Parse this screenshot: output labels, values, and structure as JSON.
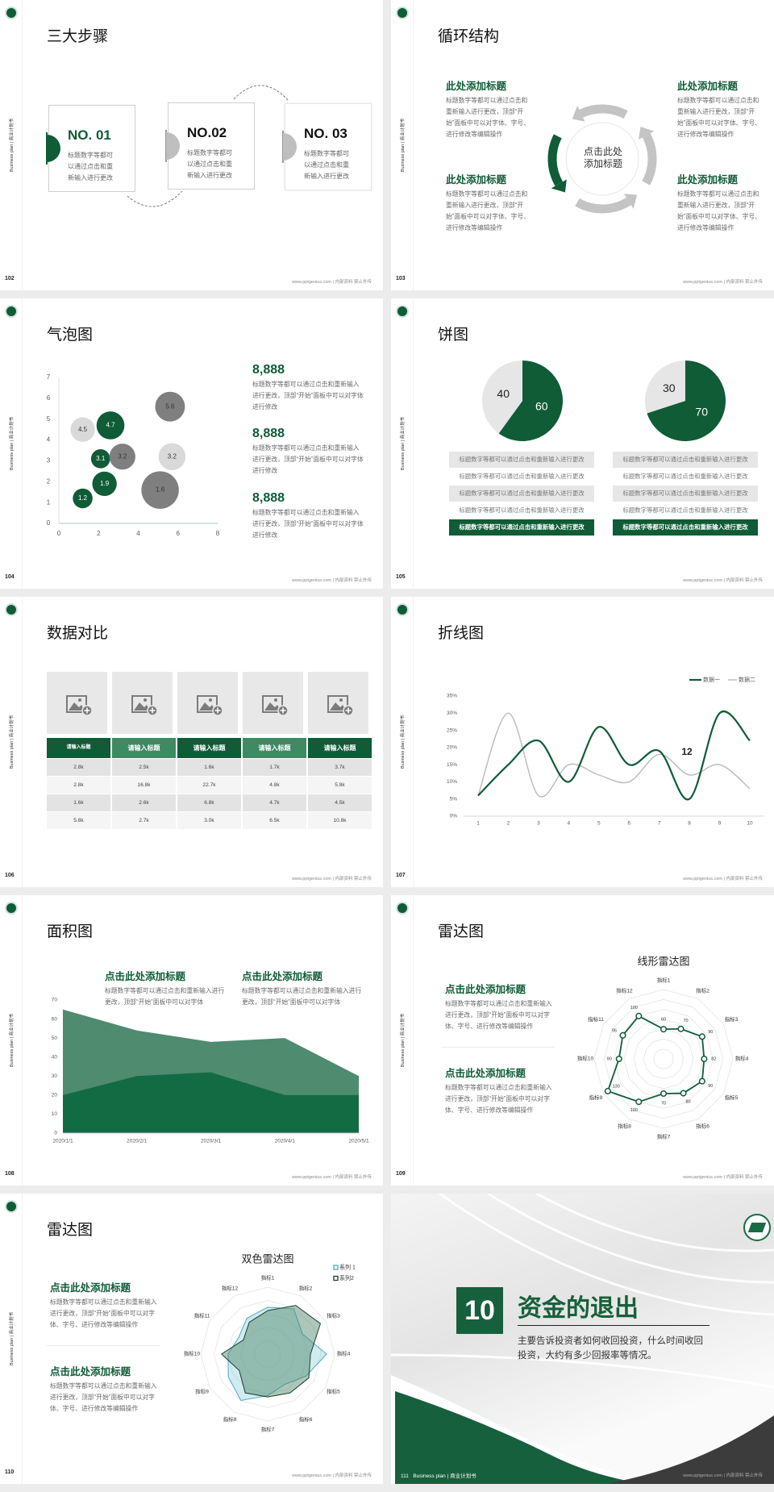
{
  "common": {
    "side_label": "Business plan | 商业计划书",
    "footer": "www.pptgenius.com | 内部资料 禁止外传"
  },
  "colors": {
    "green": "#0f5c36",
    "green_mid": "#4e8b6f",
    "green_dark_area": "#136b43",
    "gray_light": "#e6e6e6",
    "gray_dark": "#808080",
    "teal": "#4bacc6"
  },
  "slides": [
    {
      "page": "102",
      "title": "三大步骤",
      "steps": [
        {
          "no": "NO. 01",
          "text": "标题数字等都可以通过点击和重新输入进行更改"
        },
        {
          "no": "NO.02",
          "text": "标题数字等都可以通过点击和重新输入进行更改"
        },
        {
          "no": "NO. 03",
          "text": "标题数字等都可以通过点击和重新输入进行更改"
        }
      ]
    },
    {
      "page": "103",
      "title": "循环结构",
      "center": "点击此处添加标题",
      "blocks": [
        {
          "heading": "此处添加标题",
          "text": "标题数字等都可以通过点击和重新输入进行更改，顶部“开始”面板中可以对字体、字号、进行修改等编辑操作"
        },
        {
          "heading": "此处添加标题",
          "text": "标题数字等都可以通过点击和重新输入进行更改，顶部“开始”面板中可以对字体、字号、进行修改等编辑操作"
        },
        {
          "heading": "此处添加标题",
          "text": "标题数字等都可以通过点击和重新输入进行更改，顶部“开始”面板中可以对字体、字号、进行修改等编辑操作"
        },
        {
          "heading": "此处添加标题",
          "text": "标题数字等都可以通过点击和重新输入进行更改，顶部“开始”面板中可以对字体、字号、进行修改等编辑操作"
        }
      ]
    },
    {
      "page": "104",
      "title": "气泡图",
      "stats": [
        {
          "value": "8,888",
          "text": "标题数字等都可以通过点击和重新输入进行更改，顶部“开始”面板中可以对字体进行修改"
        },
        {
          "value": "8,888",
          "text": "标题数字等都可以通过点击和重新输入进行更改，顶部“开始”面板中可以对字体进行修改"
        },
        {
          "value": "8,888",
          "text": "标题数字等都可以通过点击和重新输入进行更改，顶部“开始”面板中可以对字体进行修改"
        }
      ]
    },
    {
      "page": "105",
      "title": "饼图",
      "rows_left": [
        "标题数字等都可以通过点击和重新输入进行更改",
        "标题数字等都可以通过点击和重新输入进行更改",
        "标题数字等都可以通过点击和重新输入进行更改",
        "标题数字等都可以通过点击和重新输入进行更改",
        "标题数字等都可以通过点击和重新输入进行更改"
      ],
      "rows_right": [
        "标题数字等都可以通过点击和重新输入进行更改",
        "标题数字等都可以通过点击和重新输入进行更改",
        "标题数字等都可以通过点击和重新输入进行更改",
        "标题数字等都可以通过点击和重新输入进行更改",
        "标题数字等都可以通过点击和重新输入进行更改"
      ]
    },
    {
      "page": "106",
      "title": "数据对比",
      "table": {
        "headers": [
          "请输入标题",
          "请输入标题",
          "请输入标题",
          "请输入标题",
          "请输入标题"
        ],
        "rows": [
          [
            "2.8k",
            "2.5k",
            "1.6k",
            "1.7k",
            "3.7k"
          ],
          [
            "2.8k",
            "16.8k",
            "22.7k",
            "4.8k",
            "5.8k"
          ],
          [
            "1.6k",
            "2.6k",
            "6.8k",
            "4.7k",
            "4.5k"
          ],
          [
            "5.8k",
            "2.7k",
            "3.0k",
            "6.5k",
            "10.8k"
          ]
        ]
      }
    },
    {
      "page": "107",
      "title": "折线图"
    },
    {
      "page": "108",
      "title": "面积图",
      "blocks": [
        {
          "heading": "点击此处添加标题",
          "text": "标题数字等都可以通过点击和重新输入进行更改，顶部“开始”面板中可以对字体"
        },
        {
          "heading": "点击此处添加标题",
          "text": "标题数字等都可以通过点击和重新输入进行更改，顶部“开始”面板中可以对字体"
        }
      ]
    },
    {
      "page": "109",
      "title": "雷达图",
      "blocks": [
        {
          "heading": "点击此处添加标题",
          "text": "标题数字等都可以通过点击和重新输入进行更改，顶部“开始”面板中可以对字体、字号、进行修改等编辑操作"
        },
        {
          "heading": "点击此处添加标题",
          "text": "标题数字等都可以通过点击和重新输入进行更改，顶部“开始”面板中可以对字体、字号、进行修改等编辑操作"
        }
      ]
    },
    {
      "page": "110",
      "title": "雷达图",
      "blocks": [
        {
          "heading": "点击此处添加标题",
          "text": "标题数字等都可以通过点击和重新输入进行更改，顶部“开始”面板中可以对字体、字号、进行修改等编辑操作"
        },
        {
          "heading": "点击此处添加标题",
          "text": "标题数字等都可以通过点击和重新输入进行更改，顶部“开始”面板中可以对字体、字号、进行修改等编辑操作"
        }
      ]
    },
    {
      "page": "111",
      "number": "10",
      "title": "资金的退出",
      "text": "主要告诉投资者如何收回投资，什么时间收回投资，大约有多少回报率等情况。",
      "footer_label": "Business plan | 商业计划书"
    }
  ],
  "chart_data": [
    {
      "type": "scatter",
      "xlim": [
        0,
        8
      ],
      "ylim": [
        0,
        7
      ],
      "grid": false,
      "x_ticks": [
        "0",
        "2",
        "4",
        "6",
        "8"
      ],
      "y_ticks": [
        "0",
        "1",
        "2",
        "3",
        "4",
        "5",
        "6",
        "7"
      ],
      "points": [
        {
          "x": 1.2,
          "y": 1.2,
          "size": 1.5,
          "label": "1.2",
          "color": "#0f5c36"
        },
        {
          "x": 2.3,
          "y": 1.9,
          "size": 2.3,
          "label": "1.9",
          "color": "#0f5c36"
        },
        {
          "x": 2.1,
          "y": 3.1,
          "size": 1.4,
          "label": "3.1",
          "color": "#0f5c36"
        },
        {
          "x": 2.6,
          "y": 4.7,
          "size": 3.0,
          "label": "4.7",
          "color": "#0f5c36"
        },
        {
          "x": 1.2,
          "y": 4.5,
          "size": 2.3,
          "label": "4.5",
          "color": "#d9d9d9"
        },
        {
          "x": 5.7,
          "y": 3.2,
          "size": 2.8,
          "label": "3.2",
          "color": "#d9d9d9"
        },
        {
          "x": 3.2,
          "y": 3.2,
          "size": 2.6,
          "label": "3.2",
          "color": "#7f7f7f"
        },
        {
          "x": 5.6,
          "y": 5.6,
          "size": 3.4,
          "label": "5.6",
          "color": "#7f7f7f"
        },
        {
          "x": 5.1,
          "y": 1.6,
          "size": 5.4,
          "label": "1.6",
          "color": "#7f7f7f"
        }
      ]
    },
    {
      "type": "pie",
      "pies": [
        {
          "slices": [
            {
              "value": 60,
              "label": "60",
              "color": "#0f5c36"
            },
            {
              "value": 40,
              "label": "40",
              "color": "#e6e6e6"
            }
          ]
        },
        {
          "slices": [
            {
              "value": 70,
              "label": "70",
              "color": "#0f5c36"
            },
            {
              "value": 30,
              "label": "30",
              "color": "#e6e6e6"
            }
          ]
        }
      ]
    },
    {
      "type": "line",
      "categories": [
        "1",
        "2",
        "3",
        "4",
        "5",
        "6",
        "7",
        "8",
        "9",
        "10"
      ],
      "ylim": [
        0,
        35
      ],
      "grid": false,
      "legend": "top-right",
      "y_ticks": [
        "0%",
        "5%",
        "10%",
        "15%",
        "20%",
        "25%",
        "30%",
        "35%"
      ],
      "annotation": "12",
      "series": [
        {
          "name": "数据一",
          "values": [
            6,
            15,
            22,
            10,
            26,
            15,
            19,
            5,
            30,
            22
          ],
          "color": "#0f5c36"
        },
        {
          "name": "数据二",
          "values": [
            6,
            30,
            6,
            15,
            12,
            10,
            18,
            12,
            15,
            8
          ],
          "color": "#bdbdbd"
        }
      ]
    },
    {
      "type": "area",
      "categories": [
        "2020/1/1",
        "2020/2/1",
        "2020/3/1",
        "2020/4/1",
        "2020/5/1"
      ],
      "ylim": [
        0,
        70
      ],
      "grid": false,
      "y_ticks": [
        "0",
        "10",
        "20",
        "30",
        "40",
        "50",
        "60",
        "70"
      ],
      "series": [
        {
          "values": [
            65,
            54,
            48,
            50,
            30
          ],
          "color": "#4e8b6f"
        },
        {
          "values": [
            20,
            30,
            32,
            20,
            20
          ],
          "color": "#136b43"
        }
      ]
    },
    {
      "type": "radar",
      "title": "线形雷达图",
      "rlim": [
        0,
        140
      ],
      "axes": [
        "指标1",
        "指标2",
        "指标3",
        "指标4",
        "指标5",
        "指标6",
        "指标7",
        "指标8",
        "指标9",
        "指标10",
        "指标11",
        "指标12"
      ],
      "series": [
        {
          "values": [
            60,
            70,
            90,
            82,
            90,
            80,
            70,
            100,
            130,
            90,
            95,
            100
          ],
          "labels": [
            "60",
            "70",
            "90",
            "82",
            "90",
            "80",
            "70",
            "100",
            "130",
            "90",
            "95",
            "100"
          ],
          "color": "#0f5c36"
        }
      ]
    },
    {
      "type": "radar",
      "title": "双色雷达图",
      "rlim": [
        0,
        100
      ],
      "legend": "top-right",
      "axes": [
        "指标1",
        "指标2",
        "指标3",
        "指标4",
        "指标5",
        "指标6",
        "指标7",
        "指标8",
        "指标9",
        "指标10",
        "指标11",
        "指标12"
      ],
      "series": [
        {
          "name": "系列 1",
          "values": [
            70,
            78,
            60,
            88,
            66,
            52,
            62,
            80,
            68,
            59,
            50,
            62
          ],
          "color": "#4bacc6"
        },
        {
          "name": "系列2",
          "values": [
            65,
            84,
            91,
            64,
            71,
            67,
            64,
            67,
            49,
            69,
            42,
            55
          ],
          "color": "#1e3d2e"
        }
      ]
    }
  ]
}
